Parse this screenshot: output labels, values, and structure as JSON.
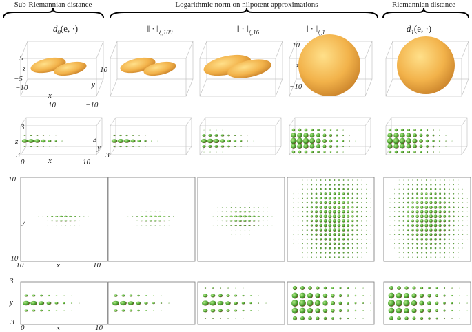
{
  "headers": [
    "Sub-Riemannian distance",
    "Logarithmic norm on nilpotent approximations",
    "Riemannian distance"
  ],
  "columns": [
    {
      "main": "d",
      "sub": "0",
      "rest": "(e, ·)"
    },
    {
      "main": "‖ · ‖",
      "sub": "ξ,100",
      "rest": ""
    },
    {
      "main": "‖ · ‖",
      "sub": "ξ,16",
      "rest": ""
    },
    {
      "main": "‖ · ‖",
      "sub": "ξ,1",
      "rest": ""
    },
    {
      "main": "d",
      "sub": "1",
      "rest": "(e, ·)"
    }
  ],
  "axis_labels": {
    "row1": [
      "5",
      "z",
      "−5",
      "−10",
      "x",
      "10",
      "10",
      "y",
      "−10"
    ],
    "row1_col4": [
      "10",
      "z",
      "−10"
    ],
    "row2": [
      "3",
      "z",
      "−3",
      "0",
      "x",
      "10",
      "3",
      "y",
      "−3"
    ],
    "row3": [
      "10",
      "y",
      "−10",
      "−10",
      "x",
      "10"
    ],
    "row4": [
      "3",
      "y",
      "−3",
      "0",
      "x",
      "10"
    ]
  }
}
